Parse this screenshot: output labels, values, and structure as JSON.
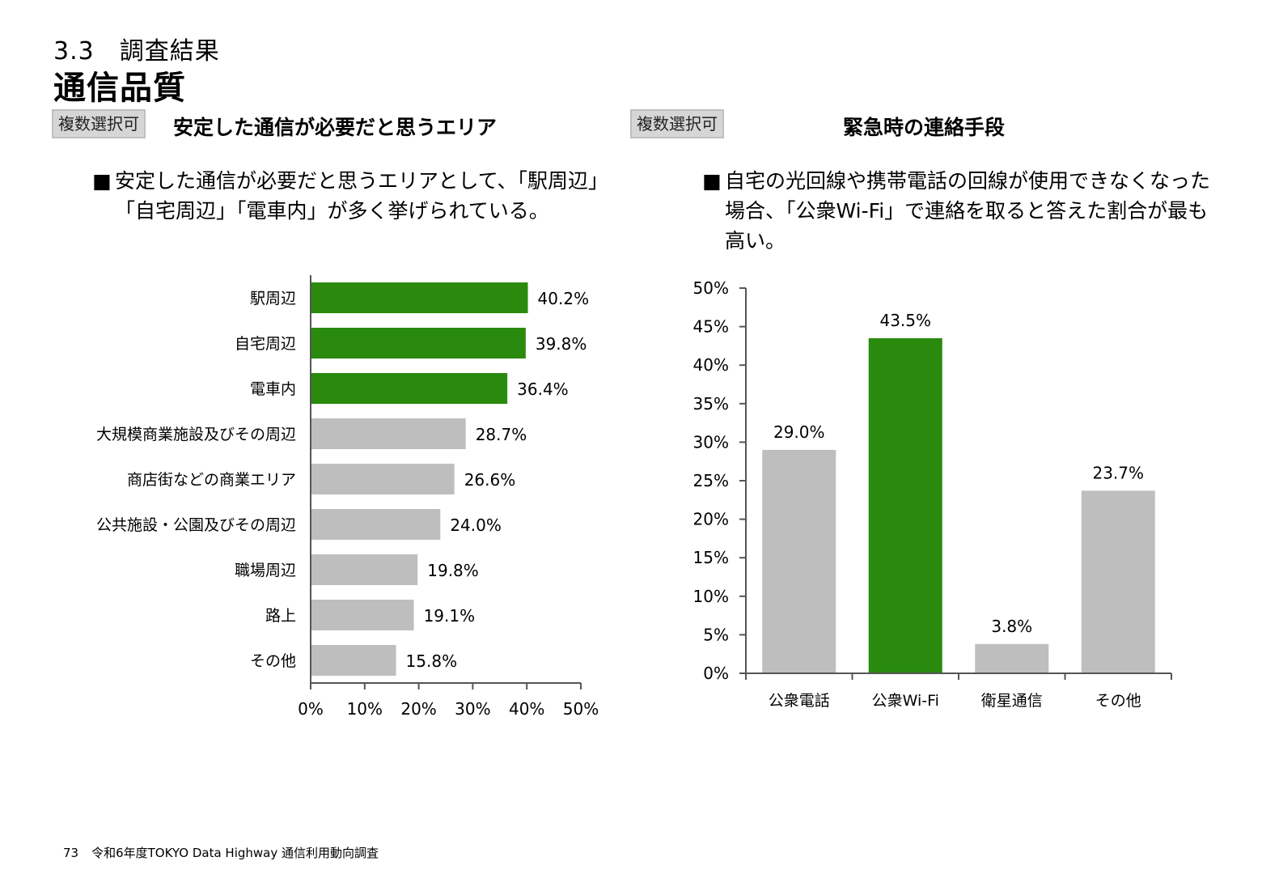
{
  "header": {
    "section": "3.3　調査結果",
    "title": "通信品質"
  },
  "left_panel": {
    "badge": "複数選択可",
    "title": "安定した通信が必要だと思うエリア",
    "bullet": "■",
    "desc_lines": [
      "安定した通信が必要だと思うエリアとして、「駅周辺」",
      "「自宅周辺」「電車内」が多く挙げられている。"
    ]
  },
  "right_panel": {
    "badge": "複数選択可",
    "title": "緊急時の連絡手段",
    "bullet": "■",
    "desc_lines": [
      "自宅の光回線や携帯電話の回線が使用できなくなった",
      "場合、「公衆Wi-Fi」で連絡を取ると答えた割合が最も",
      "高い。"
    ]
  },
  "colors": {
    "highlight": "#2a8a0e",
    "other": "#bebebe",
    "axis": "#555555"
  },
  "chart_data": [
    {
      "type": "bar",
      "orientation": "horizontal",
      "categories": [
        "駅周辺",
        "自宅周辺",
        "電車内",
        "大規模商業施設及びその周辺",
        "商店街などの商業エリア",
        "公共施設・公園及びその周辺",
        "職場周辺",
        "路上",
        "その他"
      ],
      "values": [
        40.2,
        39.8,
        36.4,
        28.7,
        26.6,
        24.0,
        19.8,
        19.1,
        15.8
      ],
      "data_labels": [
        "40.2%",
        "39.8%",
        "36.4%",
        "28.7%",
        "26.6%",
        "24.0%",
        "19.8%",
        "19.1%",
        "15.8%"
      ],
      "highlighted": [
        true,
        true,
        true,
        false,
        false,
        false,
        false,
        false,
        false
      ],
      "xlim": [
        0,
        50
      ],
      "ticks": [
        0,
        10,
        20,
        30,
        40,
        50
      ],
      "tick_labels": [
        "0%",
        "10%",
        "20%",
        "30%",
        "40%",
        "50%"
      ],
      "grid": false
    },
    {
      "type": "bar",
      "orientation": "vertical",
      "categories": [
        "公衆電話",
        "公衆Wi-Fi",
        "衛星通信",
        "その他"
      ],
      "values": [
        29.0,
        43.5,
        3.8,
        23.7
      ],
      "data_labels": [
        "29.0%",
        "43.5%",
        "3.8%",
        "23.7%"
      ],
      "highlighted": [
        false,
        true,
        false,
        false
      ],
      "ylim": [
        0,
        50
      ],
      "ticks": [
        0,
        5,
        10,
        15,
        20,
        25,
        30,
        35,
        40,
        45,
        50
      ],
      "tick_labels": [
        "0%",
        "5%",
        "10%",
        "15%",
        "20%",
        "25%",
        "30%",
        "35%",
        "40%",
        "45%",
        "50%"
      ],
      "grid": false
    }
  ],
  "footer": {
    "page": "73",
    "text": "令和6年度TOKYO Data Highway 通信利用動向調査"
  }
}
